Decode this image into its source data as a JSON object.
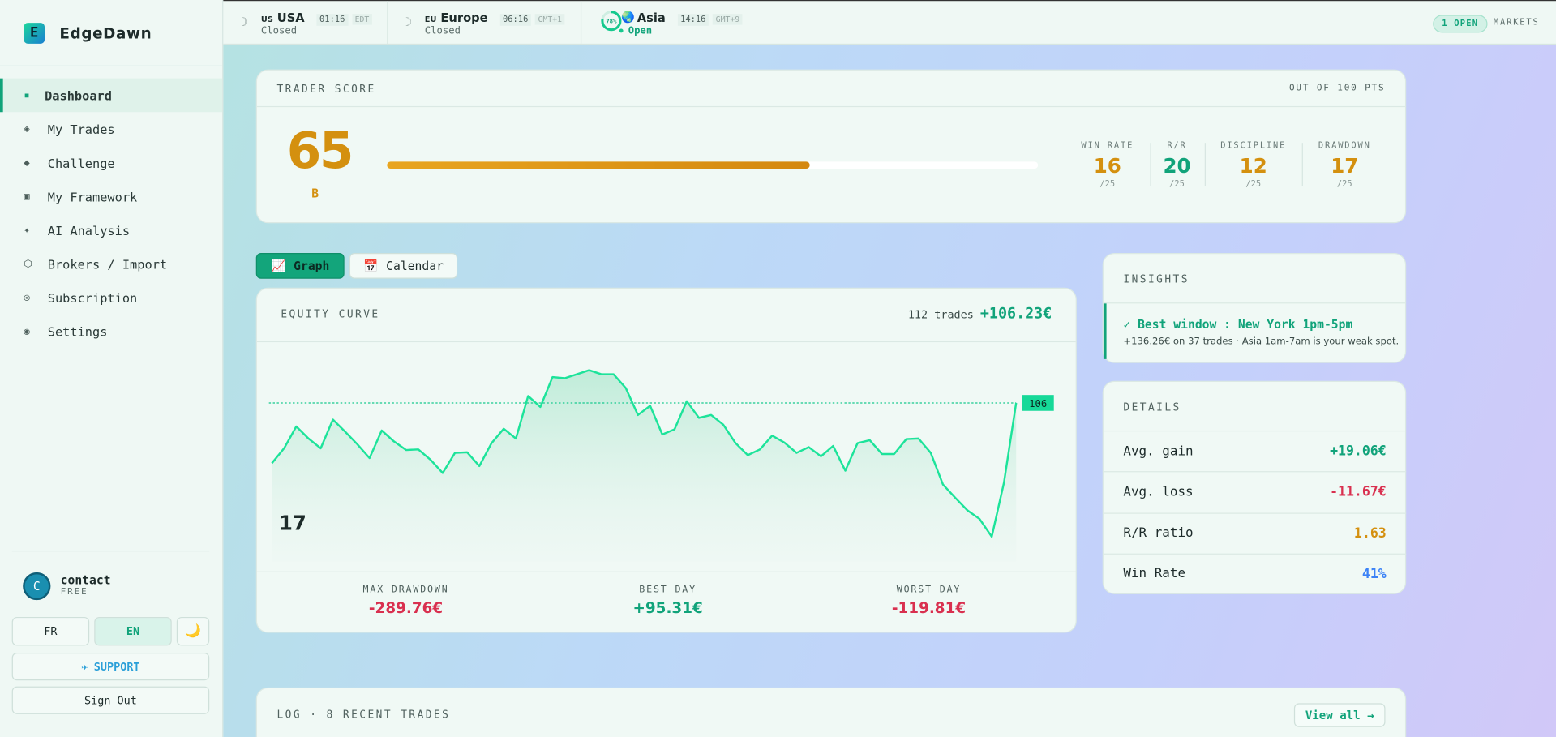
{
  "brand": "EdgeDawn",
  "markets": [
    {
      "flag": "US",
      "name": "USA",
      "time": "01:16",
      "tz": "EDT",
      "status": "Closed"
    },
    {
      "flag": "EU",
      "name": "Europe",
      "time": "06:16",
      "tz": "GMT+1",
      "status": "Closed"
    },
    {
      "name": "Asia",
      "progress": 78,
      "progress_label": "78%",
      "time": "14:16",
      "tz": "GMT+9",
      "status": "Open"
    }
  ],
  "markets_badge": "1 OPEN",
  "markets_label": "MARKETS",
  "nav": [
    "Dashboard",
    "My Trades",
    "Challenge",
    "My Framework",
    "AI Analysis",
    "Brokers / Import",
    "Subscription",
    "Settings"
  ],
  "user": {
    "initial": "C",
    "name": "contact",
    "plan": "FREE"
  },
  "languages": [
    "FR",
    "EN"
  ],
  "support": "SUPPORT",
  "sign_out": "Sign Out",
  "trader_score": {
    "title": "TRADER SCORE",
    "scale_note": "OUT OF 100 PTS",
    "score": 65,
    "score_max": 100,
    "grade": "B",
    "metrics": [
      {
        "label": "WIN RATE",
        "value": 16,
        "max": "/25",
        "color": "#d4900f"
      },
      {
        "label": "R/R",
        "value": 20,
        "max": "/25",
        "color": "#11a37a"
      },
      {
        "label": "DISCIPLINE",
        "value": 12,
        "max": "/25",
        "color": "#d4900f"
      },
      {
        "label": "DRAWDOWN",
        "value": 17,
        "max": "/25",
        "color": "#d4900f"
      }
    ]
  },
  "tabs": [
    "Graph",
    "Calendar"
  ],
  "equity": {
    "title": "EQUITY CURVE",
    "trades_label": "112 trades",
    "total": "+106.23€",
    "ylim": [
      -170,
      210
    ],
    "values": [
      1,
      27,
      65,
      44,
      27,
      77,
      56,
      34,
      10,
      58,
      39,
      24,
      25,
      7,
      -16,
      19,
      20,
      -4,
      36,
      61,
      44,
      118,
      99,
      151,
      149,
      156,
      163,
      156,
      156,
      132,
      85,
      101,
      51,
      60,
      109,
      80,
      85,
      68,
      36,
      15,
      25,
      49,
      37,
      19,
      29,
      13,
      31,
      -12,
      36,
      41,
      17,
      17,
      43,
      44,
      19,
      -36,
      -59,
      -81,
      -96,
      -127,
      -33,
      106
    ],
    "stats": [
      {
        "label": "MAX DRAWDOWN",
        "value": "-289.76€",
        "color": "#d9304f"
      },
      {
        "label": "BEST DAY",
        "value": "+95.31€",
        "color": "#11a37a"
      },
      {
        "label": "WORST DAY",
        "value": "-119.81€",
        "color": "#d9304f"
      }
    ]
  },
  "insights": {
    "title": "INSIGHTS",
    "headline": "✓ Best window : New York 1pm-5pm",
    "detail": "+136.26€ on 37 trades · Asia 1am-7am is your weak spot."
  },
  "details": {
    "title": "DETAILS",
    "rows": [
      {
        "label": "Avg. gain",
        "value": "+19.06€",
        "color": "#11a37a"
      },
      {
        "label": "Avg. loss",
        "value": "-11.67€",
        "color": "#d9304f"
      },
      {
        "label": "R/R ratio",
        "value": "1.63",
        "color": "#d4900f"
      },
      {
        "label": "Win Rate",
        "value": "41%",
        "color": "#3b82f6"
      }
    ]
  },
  "log": {
    "title": "LOG · 8 RECENT TRADES",
    "view_all": "View all →"
  }
}
